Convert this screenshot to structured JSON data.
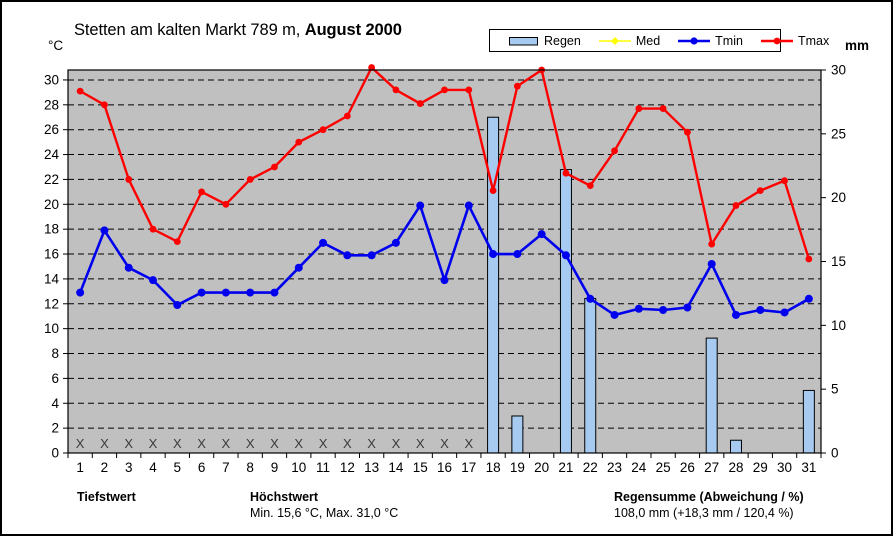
{
  "header": {
    "unit_left": "°C",
    "unit_right": "mm",
    "title_regular": "Stetten am kalten Markt 789 m, ",
    "title_bold": "August 2000"
  },
  "legend": {
    "items": [
      {
        "label": "Regen",
        "marker": "bar-swatch",
        "color": "#A6CAF0"
      },
      {
        "label": "Med",
        "marker": "line-diamond",
        "color": "#FFFF00"
      },
      {
        "label": "Tmin",
        "marker": "line-circle",
        "color": "#0000EE"
      },
      {
        "label": "Tmax",
        "marker": "line-circle",
        "color": "#FF0000"
      }
    ]
  },
  "chart_data": {
    "type": "combo-bar-line",
    "title": "Stetten am kalten Markt 789 m, August 2000",
    "categories": [
      1,
      2,
      3,
      4,
      5,
      6,
      7,
      8,
      9,
      10,
      11,
      12,
      13,
      14,
      15,
      16,
      17,
      18,
      19,
      20,
      21,
      22,
      23,
      24,
      25,
      26,
      27,
      28,
      29,
      30,
      31
    ],
    "series": [
      {
        "name": "Regen",
        "type": "bar",
        "axis": "right",
        "unit": "mm",
        "color": "#A6CAF0",
        "values": [
          0,
          0,
          0,
          0,
          0,
          0,
          0,
          0,
          0,
          0,
          0,
          0,
          0,
          0,
          0,
          0,
          0,
          26.3,
          2.9,
          0,
          22.2,
          12.1,
          0,
          0,
          0,
          0,
          9.0,
          1.0,
          0,
          0,
          4.9
        ]
      },
      {
        "name": "Med",
        "type": "line",
        "axis": "left",
        "unit": "°C",
        "color": "#FFFF00",
        "values": []
      },
      {
        "name": "Tmin",
        "type": "line",
        "axis": "left",
        "unit": "°C",
        "color": "#0000EE",
        "values": [
          12.9,
          17.9,
          14.9,
          13.9,
          11.9,
          12.9,
          12.9,
          12.9,
          12.9,
          14.9,
          16.9,
          15.9,
          15.9,
          16.9,
          19.9,
          13.9,
          19.9,
          16.0,
          16.0,
          17.6,
          15.9,
          12.4,
          11.1,
          11.6,
          11.5,
          11.7,
          15.2,
          11.1,
          11.5,
          11.3,
          12.4
        ]
      },
      {
        "name": "Tmax",
        "type": "line",
        "axis": "left",
        "unit": "°C",
        "color": "#FF0000",
        "values": [
          29.1,
          28.0,
          22.0,
          18.0,
          17.0,
          21.0,
          20.0,
          22.0,
          23.0,
          25.0,
          26.0,
          27.1,
          31.0,
          29.2,
          28.1,
          29.2,
          29.2,
          21.1,
          29.5,
          30.8,
          22.5,
          21.5,
          24.3,
          27.7,
          27.7,
          25.8,
          16.8,
          19.9,
          21.1,
          21.9,
          15.6
        ]
      }
    ],
    "missing_data_days": [
      1,
      2,
      3,
      4,
      5,
      6,
      7,
      8,
      9,
      10,
      11,
      12,
      13,
      14,
      15,
      16,
      17
    ],
    "missing_marker": "X",
    "y_left": {
      "label": "°C",
      "ticks": [
        0,
        2,
        4,
        6,
        8,
        10,
        12,
        14,
        16,
        18,
        20,
        22,
        24,
        26,
        28,
        30
      ],
      "range": [
        0,
        30.8
      ]
    },
    "y_right": {
      "label": "mm",
      "ticks": [
        0,
        5,
        10,
        15,
        20,
        25,
        30
      ],
      "range": [
        0,
        30
      ]
    },
    "plot_bg": "#C0C0C0",
    "grid": "dashed",
    "legend_position": "top"
  },
  "footer": {
    "col1_title": "Tiefstwert",
    "col2_title": "Höchstwert",
    "col2_value": "Min. 15,6 °C, Max. 31,0 °C",
    "col3_title": "Regensumme (Abweichung / %)",
    "col3_value": "108,0 mm (+18,3 mm / 120,4 %)"
  }
}
